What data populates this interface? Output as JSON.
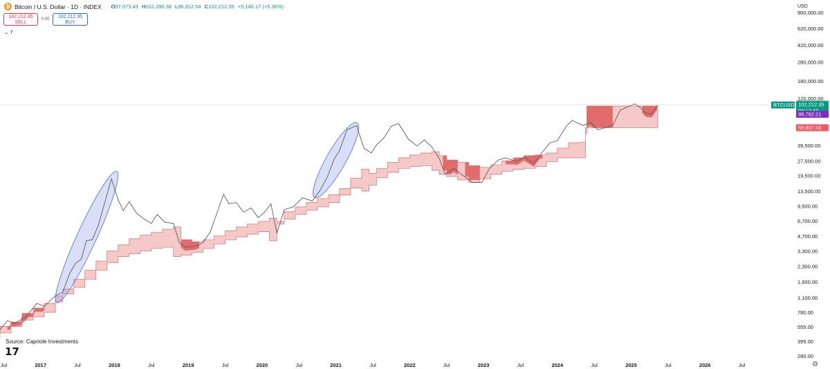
{
  "header": {
    "title": "Bitcoin / U.S. Dollar · 1D · INDEX",
    "ohlc": [
      {
        "label": "O",
        "value": "97,073.43"
      },
      {
        "label": "H",
        "value": "102,290.38"
      },
      {
        "label": "L",
        "value": "96,912.54"
      },
      {
        "label": "C",
        "value": "102,212.35"
      }
    ],
    "change": "+5,146.17 (+5.30%)",
    "icon": "bitcoin-icon"
  },
  "trade": {
    "sell_price": "102,212.35",
    "sell_label": "SELL",
    "spread": "0.00",
    "buy_price": "102,212.35",
    "buy_label": "BUY"
  },
  "indicator_toggle": "⌄ 7",
  "source": "Source: Capriole Investments",
  "axis_currency": "USD",
  "price_labels": {
    "symbol": "BTCUSD",
    "last": "102,212.35",
    "countdown": "03:12:43",
    "level_1": "99,762.21",
    "level_2": "59,857.33"
  },
  "colors": {
    "band_light": "#f6c9c9",
    "band_dark": "#e06666",
    "price_line": "#5a5a5a",
    "ellipse": "#8ea2e8",
    "last_price": "#089981",
    "level_1": "#7b2fbe",
    "level_2": "#f05a64"
  },
  "chart_data": {
    "type": "line",
    "y_scale": "log",
    "ylim": [
      280,
      900000
    ],
    "y_ticks": [
      {
        "value": 900000,
        "label": "900,000.00"
      },
      {
        "value": 620000,
        "label": "620,000.00"
      },
      {
        "value": 420000,
        "label": "420,000.00"
      },
      {
        "value": 280000,
        "label": "280,000.00"
      },
      {
        "value": 180000,
        "label": "180,000.00"
      },
      {
        "value": 120000,
        "label": "120,000.00"
      },
      {
        "value": 39500,
        "label": "39,500.00"
      },
      {
        "value": 27500,
        "label": "27,500.00"
      },
      {
        "value": 19500,
        "label": "19,500.00"
      },
      {
        "value": 13500,
        "label": "13,500.00"
      },
      {
        "value": 9500,
        "label": "9,500.00"
      },
      {
        "value": 6700,
        "label": "6,700.00"
      },
      {
        "value": 4700,
        "label": "4,700.00"
      },
      {
        "value": 3300,
        "label": "3,300.00"
      },
      {
        "value": 2300,
        "label": "2,300.00"
      },
      {
        "value": 1600,
        "label": "1,600.00"
      },
      {
        "value": 1100,
        "label": "1,100.00"
      },
      {
        "value": 780,
        "label": "780.00"
      },
      {
        "value": 555,
        "label": "555.00"
      },
      {
        "value": 395,
        "label": "395.00"
      },
      {
        "value": 280,
        "label": "280.00"
      }
    ],
    "x_ticks": [
      {
        "t": 2016.5,
        "label": "Jul"
      },
      {
        "t": 2017.0,
        "label": "2017"
      },
      {
        "t": 2017.5,
        "label": "Jul"
      },
      {
        "t": 2018.0,
        "label": "2018"
      },
      {
        "t": 2018.5,
        "label": "Jul"
      },
      {
        "t": 2019.0,
        "label": "2019"
      },
      {
        "t": 2019.5,
        "label": "Jul"
      },
      {
        "t": 2020.0,
        "label": "2020"
      },
      {
        "t": 2020.5,
        "label": "Jul"
      },
      {
        "t": 2021.0,
        "label": "2021"
      },
      {
        "t": 2021.5,
        "label": "Jul"
      },
      {
        "t": 2022.0,
        "label": "2022"
      },
      {
        "t": 2022.5,
        "label": "Jul"
      },
      {
        "t": 2023.0,
        "label": "2023"
      },
      {
        "t": 2023.5,
        "label": "Jul"
      },
      {
        "t": 2024.0,
        "label": "2024"
      },
      {
        "t": 2024.5,
        "label": "Jul"
      },
      {
        "t": 2025.0,
        "label": "2025"
      },
      {
        "t": 2025.5,
        "label": "Jul"
      },
      {
        "t": 2026.0,
        "label": "2026"
      },
      {
        "t": 2026.5,
        "label": "Jul"
      }
    ],
    "xlim": [
      2016.45,
      2026.85
    ],
    "price": [
      [
        2016.45,
        520
      ],
      [
        2016.55,
        640
      ],
      [
        2016.65,
        600
      ],
      [
        2016.8,
        700
      ],
      [
        2016.95,
        960
      ],
      [
        2017.05,
        900
      ],
      [
        2017.2,
        1150
      ],
      [
        2017.3,
        1250
      ],
      [
        2017.4,
        2000
      ],
      [
        2017.48,
        2500
      ],
      [
        2017.55,
        2700
      ],
      [
        2017.62,
        4200
      ],
      [
        2017.7,
        4300
      ],
      [
        2017.78,
        6000
      ],
      [
        2017.88,
        11000
      ],
      [
        2017.96,
        18000
      ],
      [
        2018.05,
        11000
      ],
      [
        2018.12,
        8500
      ],
      [
        2018.2,
        10500
      ],
      [
        2018.3,
        8000
      ],
      [
        2018.4,
        7000
      ],
      [
        2018.5,
        6300
      ],
      [
        2018.58,
        7800
      ],
      [
        2018.68,
        6500
      ],
      [
        2018.8,
        6300
      ],
      [
        2018.88,
        4000
      ],
      [
        2018.96,
        3600
      ],
      [
        2019.1,
        3700
      ],
      [
        2019.2,
        4000
      ],
      [
        2019.3,
        5200
      ],
      [
        2019.4,
        8500
      ],
      [
        2019.48,
        12500
      ],
      [
        2019.55,
        10000
      ],
      [
        2019.65,
        10300
      ],
      [
        2019.75,
        8200
      ],
      [
        2019.85,
        9100
      ],
      [
        2019.95,
        7200
      ],
      [
        2020.05,
        8500
      ],
      [
        2020.12,
        10000
      ],
      [
        2020.2,
        5000
      ],
      [
        2020.3,
        8700
      ],
      [
        2020.42,
        9300
      ],
      [
        2020.55,
        11500
      ],
      [
        2020.68,
        10700
      ],
      [
        2020.78,
        13500
      ],
      [
        2020.88,
        18500
      ],
      [
        2020.98,
        29000
      ],
      [
        2021.05,
        35000
      ],
      [
        2021.15,
        57000
      ],
      [
        2021.28,
        63000
      ],
      [
        2021.38,
        37000
      ],
      [
        2021.48,
        33000
      ],
      [
        2021.55,
        40000
      ],
      [
        2021.65,
        47000
      ],
      [
        2021.75,
        62000
      ],
      [
        2021.85,
        66000
      ],
      [
        2021.98,
        46000
      ],
      [
        2022.1,
        39000
      ],
      [
        2022.2,
        45000
      ],
      [
        2022.3,
        38000
      ],
      [
        2022.4,
        29000
      ],
      [
        2022.48,
        20000
      ],
      [
        2022.6,
        23000
      ],
      [
        2022.7,
        20000
      ],
      [
        2022.85,
        16500
      ],
      [
        2022.98,
        16600
      ],
      [
        2023.08,
        23000
      ],
      [
        2023.2,
        28000
      ],
      [
        2023.3,
        29500
      ],
      [
        2023.45,
        27000
      ],
      [
        2023.55,
        30000
      ],
      [
        2023.68,
        26000
      ],
      [
        2023.8,
        34000
      ],
      [
        2023.9,
        42000
      ],
      [
        2024.0,
        44000
      ],
      [
        2024.12,
        62000
      ],
      [
        2024.2,
        71000
      ],
      [
        2024.35,
        63000
      ],
      [
        2024.45,
        68000
      ],
      [
        2024.55,
        57000
      ],
      [
        2024.65,
        60000
      ],
      [
        2024.75,
        63000
      ],
      [
        2024.85,
        90000
      ],
      [
        2024.95,
        98000
      ],
      [
        2025.05,
        105000
      ],
      [
        2025.12,
        97000
      ],
      [
        2025.2,
        84000
      ],
      [
        2025.28,
        83000
      ],
      [
        2025.36,
        102212
      ]
    ],
    "band": [
      [
        2016.45,
        430,
        560
      ],
      [
        2016.6,
        480,
        620
      ],
      [
        2016.75,
        560,
        760
      ],
      [
        2016.9,
        650,
        860
      ],
      [
        2017.05,
        700,
        960
      ],
      [
        2017.2,
        780,
        1150
      ],
      [
        2017.3,
        1000,
        1350
      ],
      [
        2017.45,
        1200,
        1700
      ],
      [
        2017.6,
        1400,
        2100
      ],
      [
        2017.75,
        1700,
        2600
      ],
      [
        2017.9,
        2100,
        3300
      ],
      [
        2018.05,
        2500,
        3800
      ],
      [
        2018.2,
        2900,
        4400
      ],
      [
        2018.35,
        3100,
        4800
      ],
      [
        2018.5,
        3300,
        5100
      ],
      [
        2018.65,
        3500,
        5500
      ],
      [
        2018.8,
        3600,
        5800
      ],
      [
        2018.9,
        2900,
        4300
      ],
      [
        2019.05,
        3000,
        4100
      ],
      [
        2019.2,
        3200,
        4300
      ],
      [
        2019.35,
        3500,
        4700
      ],
      [
        2019.5,
        3900,
        5300
      ],
      [
        2019.65,
        4300,
        5800
      ],
      [
        2019.8,
        4600,
        6200
      ],
      [
        2019.95,
        4900,
        6600
      ],
      [
        2020.1,
        5200,
        7100
      ],
      [
        2020.2,
        4200,
        6600
      ],
      [
        2020.3,
        6200,
        8300
      ],
      [
        2020.45,
        7000,
        9300
      ],
      [
        2020.6,
        7800,
        10300
      ],
      [
        2020.75,
        8600,
        11300
      ],
      [
        2020.9,
        9300,
        12400
      ],
      [
        2021.05,
        10300,
        14300
      ],
      [
        2021.2,
        12300,
        18300
      ],
      [
        2021.35,
        14500,
        22500
      ],
      [
        2021.45,
        13500,
        20500
      ],
      [
        2021.55,
        15500,
        23000
      ],
      [
        2021.7,
        18500,
        26500
      ],
      [
        2021.85,
        21000,
        29500
      ],
      [
        2022.0,
        23000,
        31500
      ],
      [
        2022.15,
        24000,
        33000
      ],
      [
        2022.3,
        24500,
        34000
      ],
      [
        2022.4,
        22000,
        31000
      ],
      [
        2022.5,
        20000,
        28000
      ],
      [
        2022.65,
        19000,
        26500
      ],
      [
        2022.8,
        17500,
        24500
      ],
      [
        2022.95,
        16500,
        23500
      ],
      [
        2023.1,
        18000,
        25000
      ],
      [
        2023.25,
        20000,
        27500
      ],
      [
        2023.4,
        21500,
        29500
      ],
      [
        2023.55,
        22500,
        31000
      ],
      [
        2023.7,
        23000,
        31500
      ],
      [
        2023.85,
        24000,
        33000
      ],
      [
        2024.0,
        27000,
        37000
      ],
      [
        2024.15,
        29500,
        42000
      ],
      [
        2024.3,
        29500,
        42500
      ],
      [
        2024.38,
        29500,
        52000
      ],
      [
        2024.4,
        59857,
        99762
      ],
      [
        2025.36,
        59857,
        99762
      ]
    ],
    "dark_segments": [
      [
        2016.55,
        2017.05
      ],
      [
        2018.9,
        2019.15
      ],
      [
        2022.45,
        2022.65
      ],
      [
        2022.75,
        2022.95
      ],
      [
        2023.3,
        2023.8
      ],
      [
        2024.4,
        2024.75
      ],
      [
        2025.15,
        2025.35
      ]
    ],
    "ellipses": [
      {
        "t_start": 2017.25,
        "p_start": 1100,
        "t_end": 2018.0,
        "p_end": 19000
      },
      {
        "t_start": 2020.75,
        "p_start": 13000,
        "t_end": 2021.25,
        "p_end": 60000
      }
    ]
  }
}
